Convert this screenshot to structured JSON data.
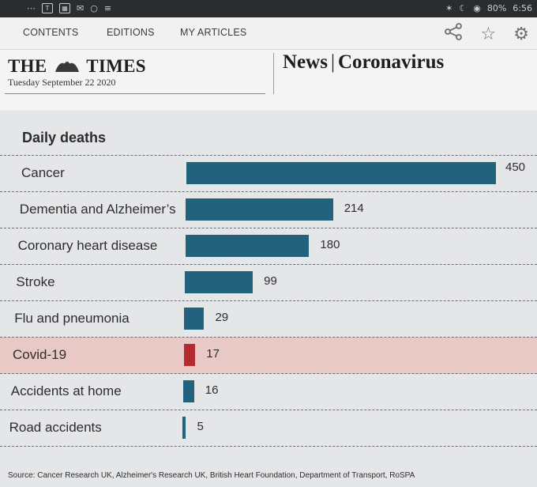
{
  "status_bar": {
    "battery": "80%",
    "time": "6:56"
  },
  "nav": {
    "tabs": [
      "CONTENTS",
      "EDITIONS",
      "MY ARTICLES"
    ],
    "icons": [
      "share-icon",
      "star-icon",
      "gear-icon"
    ]
  },
  "masthead": {
    "paper_name_left": "THE",
    "paper_name_right": "TIMES",
    "date": "Tuesday September 22 2020",
    "section": "News",
    "subsection": "Coronavirus"
  },
  "chart_data": {
    "type": "bar",
    "orientation": "horizontal",
    "title": "Daily deaths",
    "categories": [
      "Cancer",
      "Dementia and Alzheimer’s",
      "Coronary heart disease",
      "Stroke",
      "Flu and pneumonia",
      "Covid-19",
      "Accidents at home",
      "Road accidents"
    ],
    "values": [
      450,
      214,
      180,
      99,
      29,
      17,
      16,
      5
    ],
    "highlight_category": "Covid-19",
    "colors": {
      "bar": "#24617d",
      "highlight_bar": "#b42c30",
      "highlight_row": "#e9c9c5"
    },
    "source": "Source: Cancer Research UK, Alzheimer's Research UK, British Heart Foundation, Department of Transport, RoSPA"
  }
}
